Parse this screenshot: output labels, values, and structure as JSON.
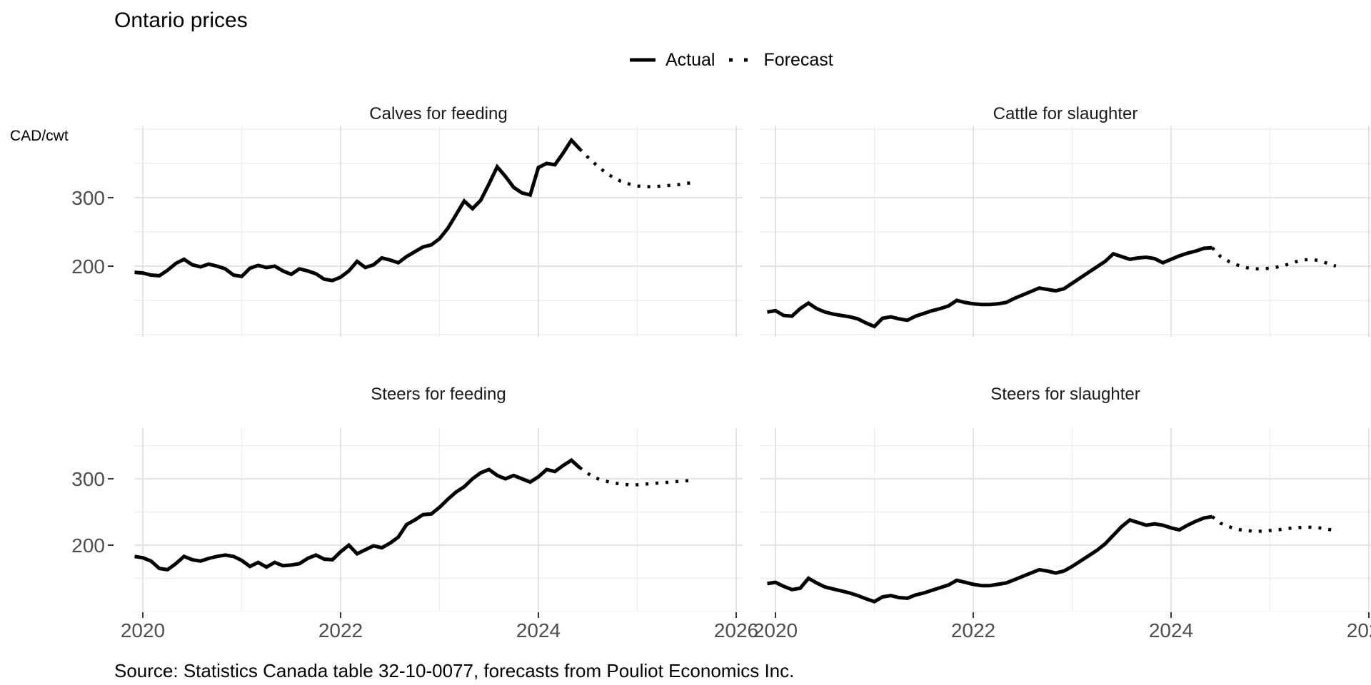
{
  "title": "Ontario prices",
  "legend": {
    "items": [
      {
        "label": "Actual",
        "style": "solid"
      },
      {
        "label": "Forecast",
        "style": "dotted"
      }
    ]
  },
  "axes": {
    "y_unit": "CAD/cwt",
    "y_tick_labels": [
      "300",
      "200"
    ],
    "x_tick_labels": [
      "2020",
      "2022",
      "2024",
      "2026"
    ]
  },
  "source": "Source: Statistics Canada table 32-10-0077, forecasts from Pouliot Economics Inc.",
  "colors": {
    "line": "#000000",
    "grid_major": "#e3e3e3",
    "grid_minor": "#eeeeee",
    "axis_text": "#4d4d4d",
    "tick": "#333333"
  },
  "chart_data": [
    {
      "type": "line",
      "title": "Calves for feeding",
      "position": "top-left",
      "ylabel": "CAD/cwt",
      "ylim": [
        100,
        405
      ],
      "y_breaks": [
        200,
        300
      ],
      "y_minor": [
        100,
        150,
        250,
        350,
        400
      ],
      "x_breaks": [
        2020,
        2022,
        2024,
        2026
      ],
      "x_minor": [
        2021,
        2023,
        2025
      ],
      "interval": "monthly",
      "series": [
        {
          "name": "Actual",
          "style": "solid",
          "start": "2019-12",
          "values": [
            191,
            190,
            187,
            186,
            194,
            204,
            210,
            202,
            199,
            203,
            200,
            196,
            187,
            185,
            197,
            201,
            198,
            200,
            193,
            188,
            196,
            193,
            189,
            181,
            179,
            184,
            193,
            207,
            198,
            202,
            212,
            209,
            205,
            214,
            221,
            228,
            231,
            240,
            255,
            275,
            295,
            284,
            296,
            320,
            345,
            331,
            315,
            307,
            304,
            344,
            350,
            348,
            365,
            384,
            371
          ]
        },
        {
          "name": "Forecast",
          "style": "dotted",
          "start": "2024-06",
          "values": [
            371,
            359,
            348,
            338,
            330,
            324,
            320,
            317,
            316,
            316,
            317,
            318,
            319,
            321,
            322
          ]
        }
      ]
    },
    {
      "type": "line",
      "title": "Cattle for slaughter",
      "position": "top-right",
      "ylabel": "CAD/cwt",
      "ylim": [
        100,
        405
      ],
      "y_breaks": [
        200,
        300
      ],
      "y_minor": [
        100,
        150,
        250,
        350,
        400
      ],
      "x_breaks": [
        2020,
        2022,
        2024,
        2026
      ],
      "x_minor": [
        2021,
        2023,
        2025
      ],
      "interval": "monthly",
      "series": [
        {
          "name": "Actual",
          "style": "solid",
          "start": "2019-12",
          "values": [
            133,
            135,
            128,
            127,
            138,
            146,
            138,
            133,
            130,
            128,
            126,
            123,
            117,
            112,
            124,
            126,
            123,
            121,
            127,
            131,
            135,
            138,
            142,
            150,
            147,
            145,
            144,
            144,
            145,
            147,
            153,
            158,
            163,
            168,
            166,
            164,
            167,
            175,
            183,
            191,
            199,
            207,
            218,
            214,
            210,
            212,
            213,
            211,
            205,
            210,
            215,
            219,
            222,
            226,
            227
          ]
        },
        {
          "name": "Forecast",
          "style": "dotted",
          "start": "2024-06",
          "values": [
            227,
            214,
            207,
            202,
            198,
            196,
            196,
            197,
            199,
            202,
            206,
            209,
            210,
            208,
            204,
            200
          ]
        }
      ]
    },
    {
      "type": "line",
      "title": "Steers for feeding",
      "position": "bottom-left",
      "ylabel": "CAD/cwt",
      "ylim": [
        100,
        375
      ],
      "y_breaks": [
        200,
        300
      ],
      "y_minor": [
        100,
        150,
        250,
        350
      ],
      "x_breaks": [
        2020,
        2022,
        2024,
        2026
      ],
      "x_minor": [
        2021,
        2023,
        2025
      ],
      "interval": "monthly",
      "series": [
        {
          "name": "Actual",
          "style": "solid",
          "start": "2019-12",
          "values": [
            183,
            181,
            176,
            165,
            163,
            172,
            183,
            178,
            176,
            180,
            183,
            185,
            183,
            177,
            168,
            174,
            167,
            174,
            169,
            170,
            172,
            180,
            185,
            179,
            178,
            190,
            200,
            187,
            193,
            199,
            196,
            203,
            212,
            231,
            238,
            246,
            247,
            257,
            269,
            280,
            288,
            300,
            309,
            314,
            305,
            300,
            305,
            300,
            295,
            303,
            314,
            311,
            320,
            328,
            317
          ]
        },
        {
          "name": "Forecast",
          "style": "dotted",
          "start": "2024-06",
          "values": [
            317,
            308,
            301,
            297,
            294,
            292,
            291,
            291,
            292,
            293,
            294,
            295,
            296,
            297,
            298
          ]
        }
      ]
    },
    {
      "type": "line",
      "title": "Steers for slaughter",
      "position": "bottom-right",
      "ylabel": "CAD/cwt",
      "ylim": [
        100,
        375
      ],
      "y_breaks": [
        200,
        300
      ],
      "y_minor": [
        100,
        150,
        250,
        350
      ],
      "x_breaks": [
        2020,
        2022,
        2024,
        2026
      ],
      "x_minor": [
        2021,
        2023,
        2025
      ],
      "interval": "monthly",
      "series": [
        {
          "name": "Actual",
          "style": "solid",
          "start": "2019-12",
          "values": [
            142,
            144,
            138,
            133,
            135,
            150,
            143,
            137,
            134,
            131,
            128,
            124,
            119,
            115,
            122,
            124,
            121,
            120,
            125,
            128,
            132,
            136,
            140,
            147,
            144,
            141,
            139,
            139,
            141,
            143,
            148,
            153,
            158,
            163,
            161,
            158,
            161,
            168,
            176,
            184,
            192,
            202,
            215,
            228,
            238,
            234,
            230,
            232,
            230,
            226,
            223,
            230,
            236,
            241,
            243
          ]
        },
        {
          "name": "Forecast",
          "style": "dotted",
          "start": "2024-06",
          "values": [
            243,
            233,
            228,
            224,
            222,
            221,
            221,
            222,
            223,
            225,
            226,
            227,
            227,
            226,
            224,
            222
          ]
        }
      ]
    }
  ]
}
